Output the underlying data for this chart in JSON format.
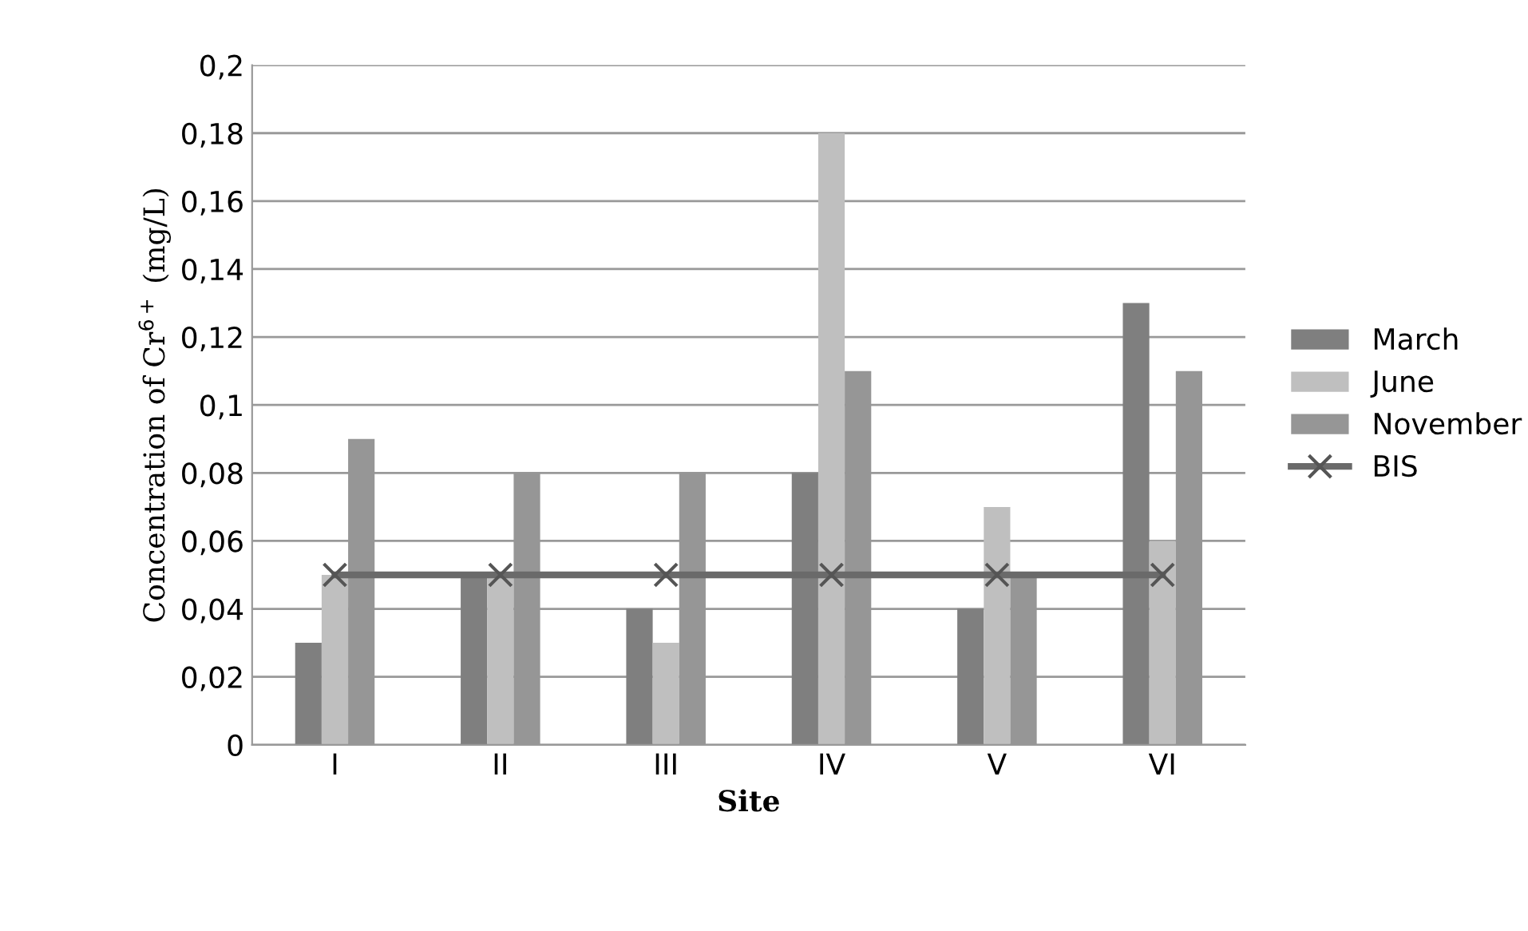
{
  "chart_data": {
    "type": "bar",
    "xlabel": "Site",
    "ylabel": "Concentration of Cr$^{6+}$ (mg/L)",
    "categories": [
      "I",
      "II",
      "III",
      "IV",
      "V",
      "VI"
    ],
    "series": [
      {
        "name": "March",
        "color": "#7f7f7f",
        "values": [
          0.03,
          0.05,
          0.04,
          0.08,
          0.04,
          0.13
        ]
      },
      {
        "name": "June",
        "color": "#bfbfbf",
        "values": [
          0.05,
          0.05,
          0.03,
          0.18,
          0.07,
          0.06
        ]
      },
      {
        "name": "November",
        "color": "#969696",
        "values": [
          0.09,
          0.08,
          0.08,
          0.11,
          0.05,
          0.11
        ]
      },
      {
        "name": "BIS",
        "color": "#6a6a6a",
        "type": "line",
        "marker": "cross",
        "values": [
          0.05,
          0.05,
          0.05,
          0.05,
          0.05,
          0.05
        ]
      }
    ],
    "ylim": [
      0,
      0.2
    ],
    "yticks": [
      0,
      {
        "value": 0.02,
        "label": "0,02"
      },
      {
        "value": 0.04,
        "label": "0,04"
      },
      {
        "value": 0.06,
        "label": "0,06"
      },
      {
        "value": 0.08,
        "label": "0,08"
      },
      {
        "value": 0.1,
        "label": "0,1"
      },
      {
        "value": 0.12,
        "label": "0,12"
      },
      {
        "value": 0.14,
        "label": "0,14"
      },
      {
        "value": 0.16,
        "label": "0,16"
      },
      {
        "value": 0.18,
        "label": "0,18"
      },
      {
        "value": 0.2,
        "label": "0,2"
      }
    ],
    "grid": "y",
    "legend": "right"
  }
}
